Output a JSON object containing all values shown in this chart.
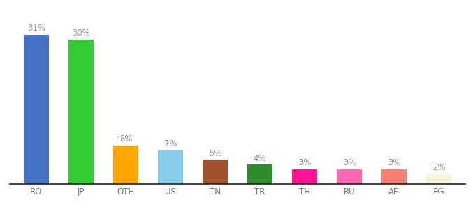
{
  "categories": [
    "RO",
    "JP",
    "OTH",
    "US",
    "TN",
    "TR",
    "TH",
    "RU",
    "AE",
    "EG"
  ],
  "values": [
    31,
    30,
    8,
    7,
    5,
    4,
    3,
    3,
    3,
    2
  ],
  "bar_colors": [
    "#4472C4",
    "#33CC33",
    "#FFA500",
    "#87CEEB",
    "#A0522D",
    "#2E8B2E",
    "#FF1493",
    "#FF69B4",
    "#FA8072",
    "#F5F5DC"
  ],
  "ylim": [
    0,
    36
  ],
  "background_color": "#ffffff",
  "label_color": "#999999",
  "label_fontsize": 8.5,
  "tick_fontsize": 8.5,
  "bar_width": 0.55
}
